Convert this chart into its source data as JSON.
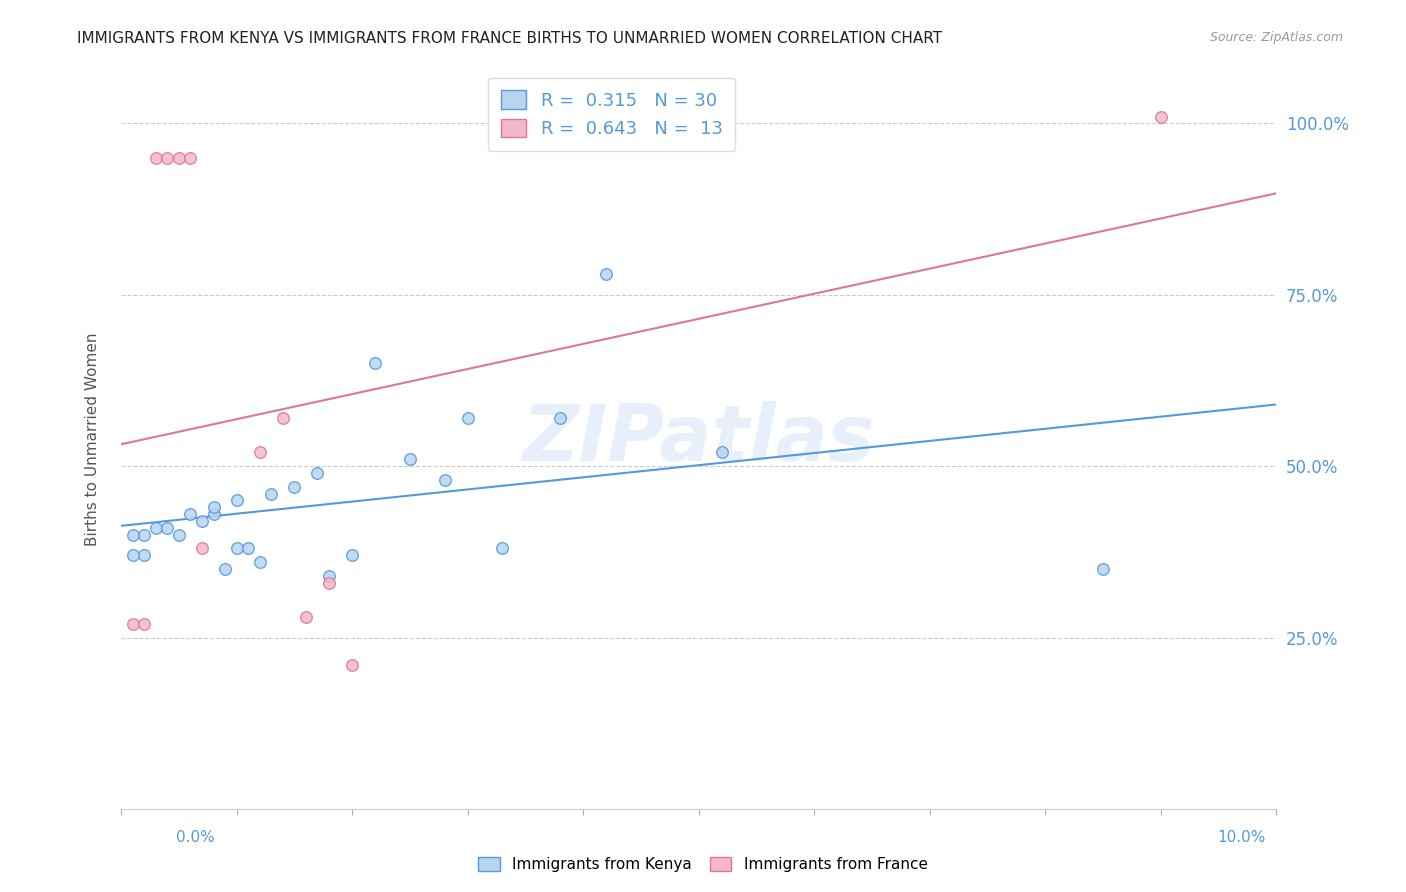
{
  "title": "IMMIGRANTS FROM KENYA VS IMMIGRANTS FROM FRANCE BIRTHS TO UNMARRIED WOMEN CORRELATION CHART",
  "source": "Source: ZipAtlas.com",
  "ylabel": "Births to Unmarried Women",
  "legend_label1": "Immigrants from Kenya",
  "legend_label2": "Immigrants from France",
  "R1": "0.315",
  "N1": "30",
  "R2": "0.643",
  "N2": "13",
  "watermark": "ZIPatlas",
  "kenya_color": "#b8d4f0",
  "kenya_edge_color": "#5599dd",
  "kenya_line_color": "#5599dd",
  "france_color": "#f5b8c8",
  "france_edge_color": "#dd7799",
  "france_line_color": "#dd7799",
  "kenya_x": [
    0.001,
    0.001,
    0.002,
    0.002,
    0.003,
    0.004,
    0.005,
    0.006,
    0.007,
    0.008,
    0.008,
    0.009,
    0.01,
    0.01,
    0.011,
    0.012,
    0.013,
    0.015,
    0.017,
    0.018,
    0.02,
    0.022,
    0.025,
    0.028,
    0.03,
    0.033,
    0.038,
    0.042,
    0.052,
    0.085
  ],
  "kenya_y": [
    0.37,
    0.4,
    0.37,
    0.4,
    0.41,
    0.41,
    0.4,
    0.43,
    0.42,
    0.43,
    0.44,
    0.35,
    0.45,
    0.38,
    0.38,
    0.36,
    0.46,
    0.47,
    0.49,
    0.34,
    0.37,
    0.65,
    0.51,
    0.48,
    0.57,
    0.38,
    0.57,
    0.78,
    0.52,
    0.35
  ],
  "france_x": [
    0.001,
    0.002,
    0.003,
    0.004,
    0.005,
    0.006,
    0.007,
    0.012,
    0.014,
    0.016,
    0.018,
    0.02,
    0.09
  ],
  "france_y": [
    0.27,
    0.27,
    0.95,
    0.95,
    0.95,
    0.95,
    0.38,
    0.52,
    0.57,
    0.28,
    0.33,
    0.21,
    1.01
  ],
  "yticks": [
    0.25,
    0.5,
    0.75,
    1.0
  ],
  "ytick_labels": [
    "25.0%",
    "50.0%",
    "75.0%",
    "100.0%"
  ],
  "xmin": 0.0,
  "xmax": 0.1,
  "ymin": 0.0,
  "ymax": 1.08,
  "background_color": "#ffffff",
  "grid_color": "#cccccc",
  "title_color": "#222222",
  "title_fontsize": 11,
  "ylabel_color": "#555555",
  "ylabel_fontsize": 11,
  "tick_label_color": "#5599dd",
  "source_color": "#999999"
}
